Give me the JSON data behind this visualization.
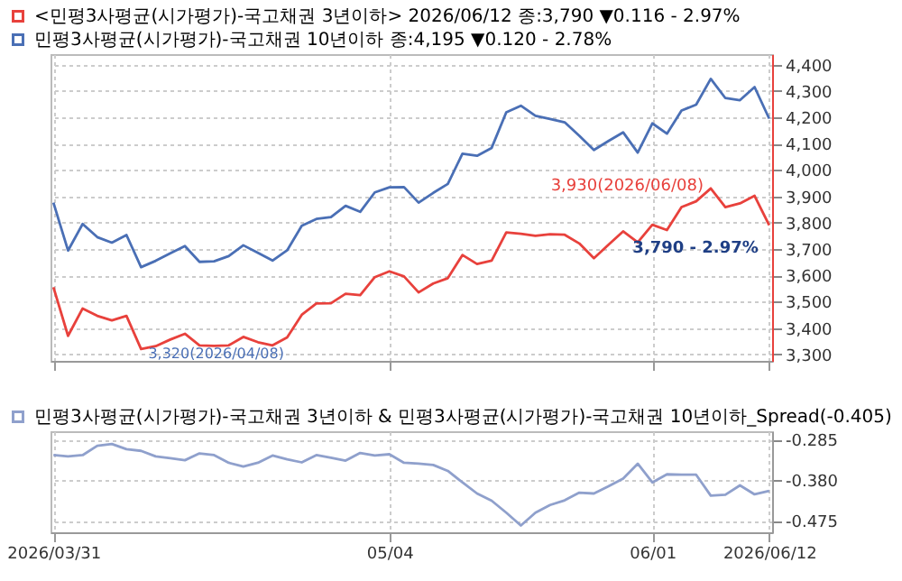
{
  "chart_data": [
    {
      "type": "line",
      "categories": [
        null,
        null,
        null,
        null,
        null,
        null,
        null,
        null,
        null,
        null,
        null,
        null,
        null,
        null,
        null,
        null,
        null,
        null,
        null,
        null,
        null,
        null,
        null,
        null,
        null,
        null,
        null,
        null,
        null,
        null,
        null,
        null,
        null,
        null,
        null,
        null,
        null,
        null,
        null,
        null,
        null,
        null,
        null,
        null,
        null,
        null,
        null,
        null,
        null,
        null
      ],
      "series": [
        {
          "name": "<민평3사평균(시가평가)-국고채권 3년이하> 2026/06/12 종:3,790 ▼0.116 - 2.97%",
          "color": "#e8413c",
          "values": [
            3555,
            3370,
            3474,
            3446,
            3429,
            3446,
            3320,
            3331,
            3356,
            3378,
            3334,
            3332,
            3334,
            3366,
            3346,
            3334,
            3364,
            3450,
            3493,
            3494,
            3530,
            3525,
            3593,
            3615,
            3596,
            3535,
            3569,
            3589,
            3677,
            3643,
            3656,
            3763,
            3758,
            3750,
            3756,
            3754,
            3721,
            3665,
            3716,
            3767,
            3725,
            3792,
            3772,
            3859,
            3881,
            3930,
            3859,
            3873,
            3902,
            3790
          ]
        },
        {
          "name": "민평3사평균(시가평가)-국고채권 10년이하 종:4,195 ▼0.120 - 2.78%",
          "color": "#4a6fb5",
          "values": [
            3876,
            3694,
            3795,
            3745,
            3724,
            3753,
            3631,
            3655,
            3684,
            3711,
            3651,
            3653,
            3673,
            3714,
            3685,
            3656,
            3695,
            3788,
            3814,
            3821,
            3864,
            3841,
            3915,
            3934,
            3935,
            3876,
            3913,
            3947,
            4062,
            4054,
            4084,
            4219,
            4244,
            4206,
            4194,
            4181,
            4130,
            4076,
            4110,
            4143,
            4066,
            4177,
            4138,
            4226,
            4248,
            4346,
            4273,
            4265,
            4315,
            4195
          ]
        }
      ],
      "ylim": [
        3275,
        4440
      ],
      "yticks": [
        {
          "value": 3300,
          "label": "3,300"
        },
        {
          "value": 3400,
          "label": "3,400"
        },
        {
          "value": 3500,
          "label": "3,500"
        },
        {
          "value": 3600,
          "label": "3,600"
        },
        {
          "value": 3700,
          "label": "3,700"
        },
        {
          "value": 3800,
          "label": "3,800"
        },
        {
          "value": 3900,
          "label": "3,900"
        },
        {
          "value": 4000,
          "label": "4,000"
        },
        {
          "value": 4100,
          "label": "4,100"
        },
        {
          "value": 4200,
          "label": "4,200"
        },
        {
          "value": 4300,
          "label": "4,300"
        },
        {
          "value": 4400,
          "label": "4,400"
        }
      ],
      "annotations": [
        "3,930(2026/06/08)",
        "3,320(2026/04/08)",
        "3,790 - 2.97%"
      ],
      "grid": true,
      "legend": "top left",
      "tick_labels": "y"
    },
    {
      "type": "line",
      "categories": [
        "2026/03/31",
        null,
        null,
        null,
        null,
        null,
        null,
        null,
        null,
        null,
        null,
        null,
        null,
        null,
        null,
        null,
        null,
        null,
        null,
        null,
        null,
        null,
        null,
        "05/04",
        null,
        null,
        null,
        null,
        null,
        null,
        null,
        null,
        null,
        null,
        null,
        null,
        null,
        null,
        null,
        null,
        null,
        "06/01",
        null,
        null,
        null,
        null,
        null,
        null,
        null,
        "2026/06/12"
      ],
      "series": [
        {
          "name": "민평3사평균(시가평가)-국고채권 3년이하 & 민평3사평균(시가평가)-국고채권 10년이하_Spread(-0.405)",
          "color": "#8fa0cc",
          "values": [
            -0.321,
            -0.324,
            -0.321,
            -0.299,
            -0.295,
            -0.307,
            -0.311,
            -0.324,
            -0.328,
            -0.333,
            -0.317,
            -0.321,
            -0.339,
            -0.348,
            -0.339,
            -0.322,
            -0.331,
            -0.338,
            -0.321,
            -0.327,
            -0.334,
            -0.316,
            -0.322,
            -0.319,
            -0.339,
            -0.341,
            -0.344,
            -0.358,
            -0.385,
            -0.411,
            -0.428,
            -0.456,
            -0.486,
            -0.456,
            -0.438,
            -0.427,
            -0.409,
            -0.411,
            -0.394,
            -0.376,
            -0.341,
            -0.385,
            -0.366,
            -0.367,
            -0.367,
            -0.416,
            -0.414,
            -0.392,
            -0.413,
            -0.405
          ]
        }
      ],
      "ylim": [
        -0.502,
        -0.265
      ],
      "yticks": [
        {
          "value": -0.285,
          "label": "-0.285"
        },
        {
          "value": -0.38,
          "label": "-0.380"
        },
        {
          "value": -0.475,
          "label": "-0.475"
        }
      ],
      "grid": true,
      "legend": "top"
    }
  ]
}
